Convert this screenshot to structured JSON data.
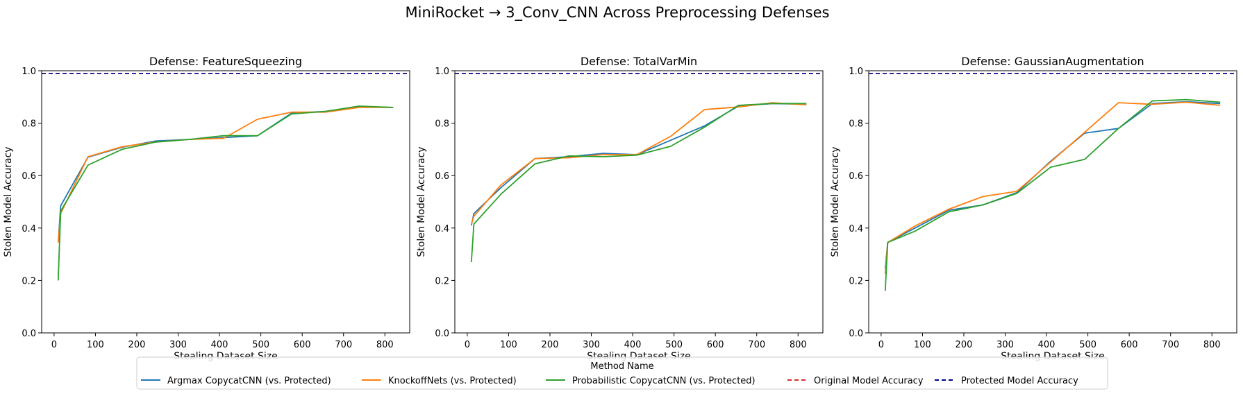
{
  "figure": {
    "title": "MiniRocket → 3_Conv_CNN Across Preprocessing Defenses"
  },
  "legend": {
    "title": "Method Name",
    "entries": [
      {
        "label": "Argmax CopycatCNN (vs. Protected)",
        "color": "#1f77b4",
        "style": "solid"
      },
      {
        "label": "KnockoffNets (vs. Protected)",
        "color": "#ff7f0e",
        "style": "solid"
      },
      {
        "label": "Probabilistic CopycatCNN (vs. Protected)",
        "color": "#2ca02c",
        "style": "solid"
      },
      {
        "label": "Original Model Accuracy",
        "color": "#d62728",
        "style": "dashed"
      },
      {
        "label": "Protected Model Accuracy",
        "color": "#00008b",
        "style": "dashed"
      }
    ]
  },
  "chart_data": [
    {
      "type": "line",
      "title": "Defense: FeatureSqueezing",
      "xlabel": "Stealing Dataset Size",
      "ylabel": "Stolen Model Accuracy",
      "xlim": [
        -30,
        860
      ],
      "ylim": [
        0.0,
        1.0
      ],
      "xticks": [
        0,
        100,
        200,
        300,
        400,
        500,
        600,
        700,
        800
      ],
      "yticks": [
        0.0,
        0.2,
        0.4,
        0.6,
        0.8,
        1.0
      ],
      "ytick_labels": [
        "0.0",
        "0.2",
        "0.4",
        "0.6",
        "0.8",
        "1.0"
      ],
      "grid": false,
      "hlines": [
        {
          "name": "Original Model Accuracy",
          "y": 0.99,
          "color": "#d62728"
        },
        {
          "name": "Protected Model Accuracy",
          "y": 0.99,
          "color": "#00008b"
        }
      ],
      "series": [
        {
          "name": "Argmax CopycatCNN (vs. Protected)",
          "color": "#1f77b4",
          "x": [
            10,
            16,
            82,
            164,
            246,
            328,
            410,
            492,
            574,
            656,
            738,
            820
          ],
          "y": [
            0.345,
            0.485,
            0.67,
            0.708,
            0.732,
            0.738,
            0.745,
            0.752,
            0.838,
            0.845,
            0.862,
            0.86
          ]
        },
        {
          "name": "KnockoffNets (vs. Protected)",
          "color": "#ff7f0e",
          "x": [
            10,
            16,
            82,
            164,
            246,
            328,
            410,
            492,
            574,
            656,
            738,
            820
          ],
          "y": [
            0.345,
            0.455,
            0.672,
            0.71,
            0.728,
            0.738,
            0.742,
            0.815,
            0.842,
            0.842,
            0.86,
            0.86
          ]
        },
        {
          "name": "Probabilistic CopycatCNN (vs. Protected)",
          "color": "#2ca02c",
          "x": [
            10,
            16,
            82,
            164,
            246,
            328,
            410,
            492,
            574,
            656,
            738,
            820
          ],
          "y": [
            0.2,
            0.465,
            0.64,
            0.7,
            0.728,
            0.738,
            0.752,
            0.752,
            0.835,
            0.845,
            0.865,
            0.86
          ]
        }
      ]
    },
    {
      "type": "line",
      "title": "Defense: TotalVarMin",
      "xlabel": "Stealing Dataset Size",
      "ylabel": "Stolen Model Accuracy",
      "xlim": [
        -30,
        860
      ],
      "ylim": [
        0.0,
        1.0
      ],
      "xticks": [
        0,
        100,
        200,
        300,
        400,
        500,
        600,
        700,
        800
      ],
      "yticks": [
        0.0,
        0.2,
        0.4,
        0.6,
        0.8,
        1.0
      ],
      "ytick_labels": [
        "0.0",
        "0.2",
        "0.4",
        "0.6",
        "0.8",
        "1.0"
      ],
      "grid": false,
      "hlines": [
        {
          "name": "Original Model Accuracy",
          "y": 0.99,
          "color": "#d62728"
        },
        {
          "name": "Protected Model Accuracy",
          "y": 0.99,
          "color": "#00008b"
        }
      ],
      "series": [
        {
          "name": "Argmax CopycatCNN (vs. Protected)",
          "color": "#1f77b4",
          "x": [
            10,
            16,
            82,
            164,
            246,
            328,
            410,
            492,
            574,
            656,
            738,
            820
          ],
          "y": [
            0.41,
            0.455,
            0.555,
            0.665,
            0.672,
            0.685,
            0.68,
            0.735,
            0.79,
            0.865,
            0.875,
            0.872
          ]
        },
        {
          "name": "KnockoffNets (vs. Protected)",
          "color": "#ff7f0e",
          "x": [
            10,
            16,
            82,
            164,
            246,
            328,
            410,
            492,
            574,
            656,
            738,
            820
          ],
          "y": [
            0.415,
            0.445,
            0.565,
            0.665,
            0.668,
            0.68,
            0.68,
            0.75,
            0.852,
            0.862,
            0.878,
            0.87
          ]
        },
        {
          "name": "Probabilistic CopycatCNN (vs. Protected)",
          "color": "#2ca02c",
          "x": [
            10,
            16,
            82,
            164,
            246,
            328,
            410,
            492,
            574,
            656,
            738,
            820
          ],
          "y": [
            0.27,
            0.415,
            0.53,
            0.645,
            0.675,
            0.672,
            0.678,
            0.712,
            0.785,
            0.868,
            0.875,
            0.875
          ]
        }
      ]
    },
    {
      "type": "line",
      "title": "Defense: GaussianAugmentation",
      "xlabel": "Stealing Dataset Size",
      "ylabel": "Stolen Model Accuracy",
      "xlim": [
        -30,
        860
      ],
      "ylim": [
        0.0,
        1.0
      ],
      "xticks": [
        0,
        100,
        200,
        300,
        400,
        500,
        600,
        700,
        800
      ],
      "yticks": [
        0.0,
        0.2,
        0.4,
        0.6,
        0.8,
        1.0
      ],
      "ytick_labels": [
        "0.0",
        "0.2",
        "0.4",
        "0.6",
        "0.8",
        "1.0"
      ],
      "grid": false,
      "hlines": [
        {
          "name": "Original Model Accuracy",
          "y": 0.99,
          "color": "#d62728"
        },
        {
          "name": "Protected Model Accuracy",
          "y": 0.99,
          "color": "#00008b"
        }
      ],
      "series": [
        {
          "name": "Argmax CopycatCNN (vs. Protected)",
          "color": "#1f77b4",
          "x": [
            10,
            16,
            82,
            164,
            246,
            328,
            410,
            492,
            574,
            656,
            738,
            820
          ],
          "y": [
            0.245,
            0.345,
            0.4,
            0.468,
            0.488,
            0.535,
            0.655,
            0.762,
            0.78,
            0.875,
            0.882,
            0.875
          ]
        },
        {
          "name": "KnockoffNets (vs. Protected)",
          "color": "#ff7f0e",
          "x": [
            10,
            16,
            82,
            164,
            246,
            328,
            410,
            492,
            574,
            656,
            738,
            820
          ],
          "y": [
            0.225,
            0.345,
            0.408,
            0.472,
            0.52,
            0.54,
            0.652,
            0.765,
            0.878,
            0.872,
            0.88,
            0.868
          ]
        },
        {
          "name": "Probabilistic CopycatCNN (vs. Protected)",
          "color": "#2ca02c",
          "x": [
            10,
            16,
            82,
            164,
            246,
            328,
            410,
            492,
            574,
            656,
            738,
            820
          ],
          "y": [
            0.16,
            0.345,
            0.388,
            0.462,
            0.488,
            0.532,
            0.632,
            0.662,
            0.78,
            0.885,
            0.89,
            0.88
          ]
        }
      ]
    }
  ]
}
